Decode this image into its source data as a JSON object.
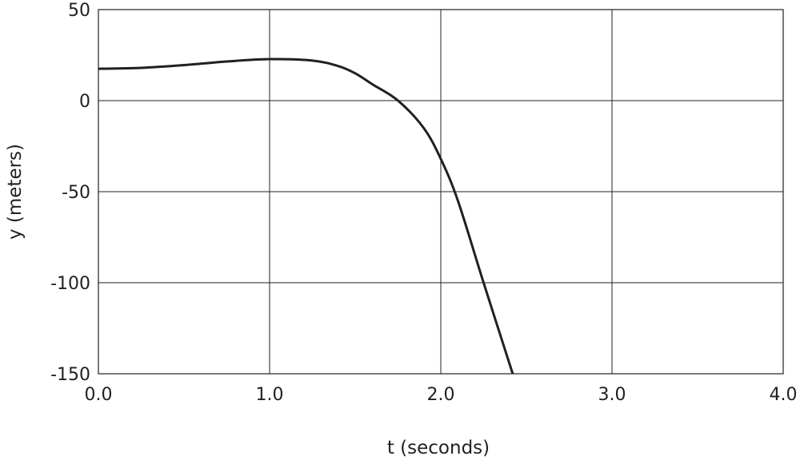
{
  "chart_data": {
    "type": "line",
    "title": "",
    "xlabel": "t (seconds)",
    "ylabel": "y (meters)",
    "xlim": [
      0,
      4
    ],
    "ylim": [
      -150,
      50
    ],
    "xticks": [
      "0.0",
      "1.0",
      "2.0",
      "3.0",
      "4.0"
    ],
    "yticks": [
      "50",
      "0",
      "-50",
      "-100",
      "-150"
    ],
    "grid": true,
    "series": [
      {
        "x": [
          0,
          0.25,
          0.5,
          0.75,
          1.0,
          1.25,
          1.4,
          1.5,
          1.6,
          1.75,
          1.9,
          2.0,
          2.1,
          2.25,
          2.42
        ],
        "y": [
          17.5,
          18,
          19.5,
          21.5,
          22.8,
          22,
          19,
          15,
          9,
          0,
          -15,
          -32,
          -55,
          -100,
          -150
        ],
        "color": "#231f20"
      }
    ]
  }
}
